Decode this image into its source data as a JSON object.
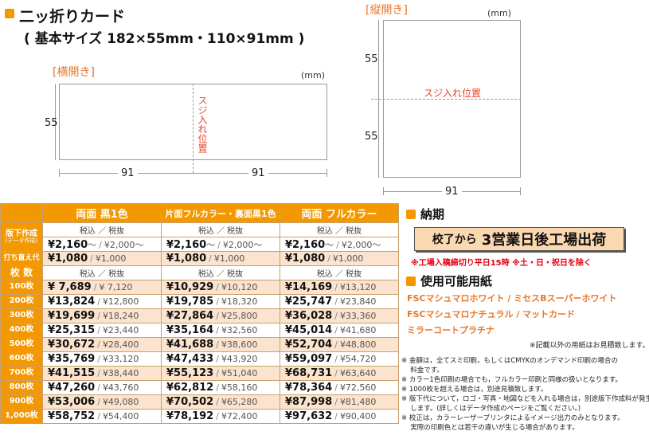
{
  "header": {
    "title": "二ッ折りカード",
    "subtitle": "( 基本サイズ 182×55mm・110×91mm )"
  },
  "horizontal": {
    "label": "[横開き]",
    "unit": "(mm)",
    "height": "55",
    "width_left": "91",
    "width_right": "91",
    "crease": "スジ入れ位置"
  },
  "vertical": {
    "label": "[縦開き]",
    "unit": "(mm)",
    "height_top": "55",
    "height_bottom": "55",
    "width": "91",
    "crease": "スジ入れ位置"
  },
  "price_table": {
    "columns": [
      "両面 黒1色",
      "片面フルカラー・裏面黒1色",
      "両面 フルカラー"
    ],
    "tax_header": "税込 ／ 税抜",
    "plate_row": {
      "label": "版下作成",
      "sublabel": "(データ作成)",
      "cells": [
        {
          "incl": "¥2,160",
          "excl": "¥2,000",
          "suffix": "～"
        },
        {
          "incl": "¥2,160",
          "excl": "¥2,000",
          "suffix": "～"
        },
        {
          "incl": "¥2,160",
          "excl": "¥2,000",
          "suffix": "～"
        }
      ]
    },
    "retype_row": {
      "label": "打ち直え代",
      "cells": [
        {
          "incl": "¥1,080",
          "excl": "¥1,000"
        },
        {
          "incl": "¥1,080",
          "excl": "¥1,000"
        },
        {
          "incl": "¥1,080",
          "excl": "¥1,000"
        }
      ]
    },
    "qty_header": "枚 数",
    "rows": [
      {
        "qty": "100枚",
        "cells": [
          {
            "incl": "¥ 7,689",
            "excl": "¥ 7,120"
          },
          {
            "incl": "¥10,929",
            "excl": "¥10,120"
          },
          {
            "incl": "¥14,169",
            "excl": "¥13,120"
          }
        ]
      },
      {
        "qty": "200枚",
        "cells": [
          {
            "incl": "¥13,824",
            "excl": "¥12,800"
          },
          {
            "incl": "¥19,785",
            "excl": "¥18,320"
          },
          {
            "incl": "¥25,747",
            "excl": "¥23,840"
          }
        ]
      },
      {
        "qty": "300枚",
        "cells": [
          {
            "incl": "¥19,699",
            "excl": "¥18,240"
          },
          {
            "incl": "¥27,864",
            "excl": "¥25,800"
          },
          {
            "incl": "¥36,028",
            "excl": "¥33,360"
          }
        ]
      },
      {
        "qty": "400枚",
        "cells": [
          {
            "incl": "¥25,315",
            "excl": "¥23,440"
          },
          {
            "incl": "¥35,164",
            "excl": "¥32,560"
          },
          {
            "incl": "¥45,014",
            "excl": "¥41,680"
          }
        ]
      },
      {
        "qty": "500枚",
        "cells": [
          {
            "incl": "¥30,672",
            "excl": "¥28,400"
          },
          {
            "incl": "¥41,688",
            "excl": "¥38,600"
          },
          {
            "incl": "¥52,704",
            "excl": "¥48,800"
          }
        ]
      },
      {
        "qty": "600枚",
        "cells": [
          {
            "incl": "¥35,769",
            "excl": "¥33,120"
          },
          {
            "incl": "¥47,433",
            "excl": "¥43,920"
          },
          {
            "incl": "¥59,097",
            "excl": "¥54,720"
          }
        ]
      },
      {
        "qty": "700枚",
        "cells": [
          {
            "incl": "¥41,515",
            "excl": "¥38,440"
          },
          {
            "incl": "¥55,123",
            "excl": "¥51,040"
          },
          {
            "incl": "¥68,731",
            "excl": "¥63,640"
          }
        ]
      },
      {
        "qty": "800枚",
        "cells": [
          {
            "incl": "¥47,260",
            "excl": "¥43,760"
          },
          {
            "incl": "¥62,812",
            "excl": "¥58,160"
          },
          {
            "incl": "¥78,364",
            "excl": "¥72,560"
          }
        ]
      },
      {
        "qty": "900枚",
        "cells": [
          {
            "incl": "¥53,006",
            "excl": "¥49,080"
          },
          {
            "incl": "¥70,502",
            "excl": "¥65,280"
          },
          {
            "incl": "¥87,998",
            "excl": "¥81,480"
          }
        ]
      },
      {
        "qty": "1,000枚",
        "cells": [
          {
            "incl": "¥58,752",
            "excl": "¥54,400"
          },
          {
            "incl": "¥78,192",
            "excl": "¥72,400"
          },
          {
            "incl": "¥97,632",
            "excl": "¥90,400"
          }
        ]
      }
    ]
  },
  "delivery": {
    "title": "納期",
    "box_prefix": "校了から",
    "box_main": "3営業日後工場出荷",
    "notice": "※工場入稿締切り平日15時 ※土・日・祝日を除く"
  },
  "paper": {
    "title": "使用可能用紙",
    "line1": "FSCマシュマロホワイト / ミセスBスーパーホワイト",
    "line2": "FSCマシュマロナチュラル / マットカード",
    "line3": "ミラーコートプラチナ",
    "note": "※記載以外の用紙はお見積致します。"
  },
  "notes": [
    "※ 金額は，全てスミ印刷，もしくはCMYKのオンデマンド印刷の場合の",
    "　 料金です。",
    "※ カラー1色印刷の場合でも，フルカラー印刷と同様の扱いとなります。",
    "※ 1000枚を超える場合は，別途見積致します。",
    "※ 版下代について，ロゴ・写真・地図などを入れる場合は，別途版下作成料が発生",
    "　 します。(詳しくはデータ作成のページをご覧ください。)",
    "※ 校正は，カラーレーザープリンタによるイメージ出力のみとなります。",
    "　 実際の印刷色とは若干の違いが生じる場合があります。"
  ]
}
